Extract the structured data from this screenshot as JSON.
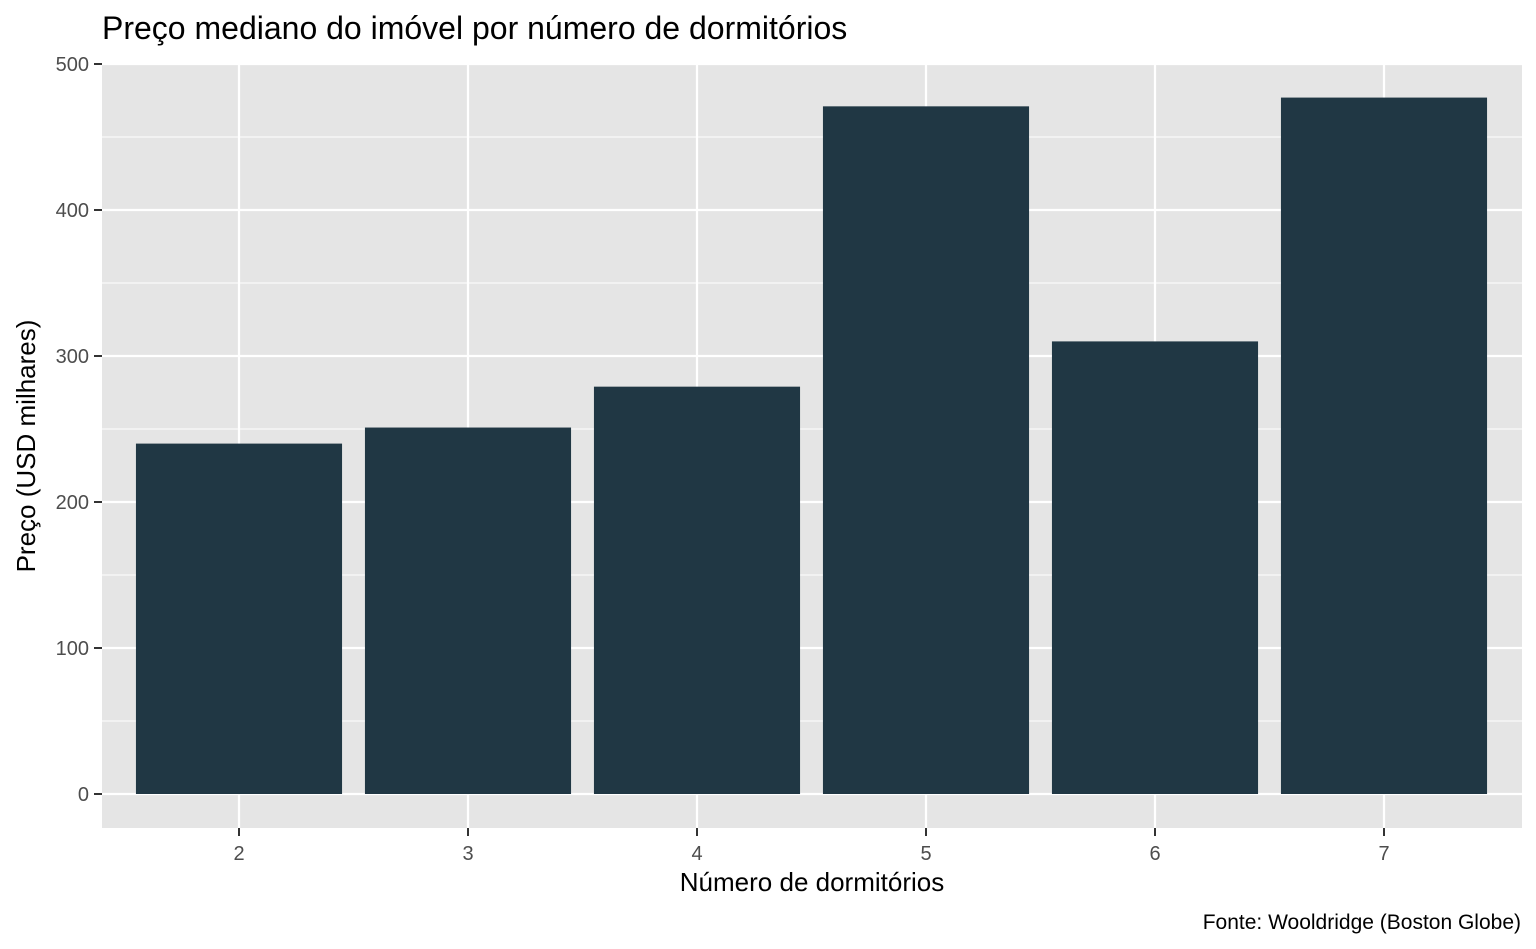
{
  "chart_data": {
    "type": "bar",
    "title": "Preço mediano do imóvel por número de dormitórios",
    "xlabel": "Número de dormitórios",
    "ylabel": "Preço (USD milhares)",
    "caption": "Fonte: Wooldridge (Boston Globe)",
    "categories": [
      "2",
      "3",
      "4",
      "5",
      "6",
      "7"
    ],
    "values": [
      240,
      251,
      279,
      471,
      310,
      477
    ],
    "ylim": [
      0,
      500
    ],
    "yticks": [
      "0",
      "100",
      "200",
      "300",
      "400",
      "500"
    ],
    "grid": true,
    "legend": "none",
    "colors": {
      "bar": "#203744",
      "panel": "#e5e5e5",
      "grid": "#ffffff",
      "tick": "#333333"
    }
  }
}
